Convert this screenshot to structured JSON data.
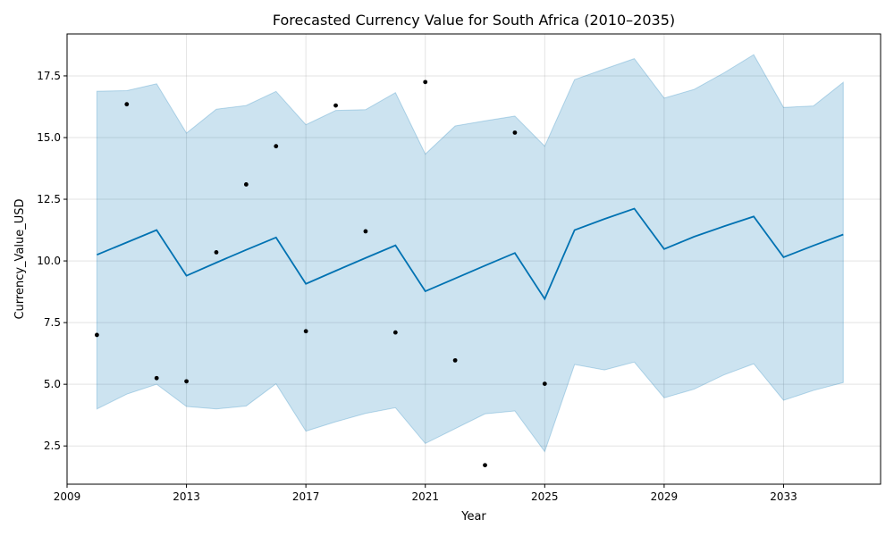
{
  "chart_data": {
    "type": "line",
    "title": "Forecasted Currency Value for South Africa (2010–2035)",
    "xlabel": "Year",
    "ylabel": "Currency_Value_USD",
    "xlim": [
      2009.0,
      2036.25
    ],
    "ylim": [
      0.95,
      19.2
    ],
    "x_ticks": [
      2009,
      2013,
      2017,
      2021,
      2025,
      2029,
      2033
    ],
    "y_ticks": [
      2.5,
      5.0,
      7.5,
      10.0,
      12.5,
      15.0,
      17.5
    ],
    "y_tick_labels": [
      "2.5",
      "5.0",
      "7.5",
      "10.0",
      "12.5",
      "15.0",
      "17.5"
    ],
    "grid": true,
    "colors": {
      "forecast_line": "#0072B2",
      "interval_fill": "#0072B2",
      "observed_points": "#000000"
    },
    "observed": {
      "x": [
        2010,
        2011,
        2012,
        2013,
        2014,
        2015,
        2016,
        2017,
        2018,
        2019,
        2020,
        2021,
        2022,
        2023,
        2024,
        2025
      ],
      "y": [
        7.0,
        16.35,
        5.25,
        5.12,
        10.35,
        13.1,
        14.65,
        7.15,
        16.3,
        11.2,
        7.1,
        17.25,
        5.97,
        1.72,
        15.2,
        5.02
      ]
    },
    "forecast": {
      "x": [
        2010,
        2011,
        2012,
        2013,
        2014,
        2015,
        2016,
        2017,
        2018,
        2019,
        2020,
        2021,
        2022,
        2023,
        2024,
        2025,
        2026,
        2027,
        2028,
        2029,
        2030,
        2031,
        2032,
        2033,
        2034,
        2035
      ],
      "yhat": [
        10.25,
        10.75,
        11.25,
        9.4,
        9.93,
        10.45,
        10.95,
        9.07,
        9.6,
        10.12,
        10.63,
        8.77,
        9.29,
        9.81,
        10.32,
        8.46,
        11.25,
        11.7,
        12.12,
        10.48,
        10.98,
        11.4,
        11.8,
        10.15,
        10.62,
        11.07
      ],
      "yhat_lower": [
        4.0,
        4.6,
        5.0,
        4.1,
        4.0,
        4.12,
        5.02,
        3.1,
        3.48,
        3.82,
        4.05,
        2.6,
        3.2,
        3.8,
        3.92,
        2.27,
        5.8,
        5.58,
        5.9,
        4.45,
        4.8,
        5.38,
        5.83,
        4.35,
        4.75,
        5.07
      ],
      "yhat_upper": [
        16.88,
        16.9,
        17.18,
        15.18,
        16.15,
        16.3,
        16.87,
        15.52,
        16.1,
        16.13,
        16.82,
        14.33,
        15.47,
        15.68,
        15.87,
        14.65,
        17.35,
        17.78,
        18.2,
        16.6,
        16.95,
        17.62,
        18.36,
        16.22,
        16.28,
        17.24
      ]
    }
  }
}
